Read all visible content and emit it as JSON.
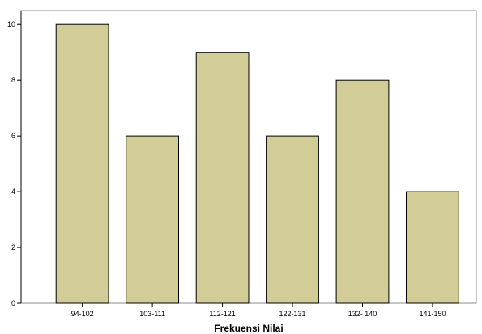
{
  "chart_data": {
    "type": "bar",
    "categories": [
      "94-102",
      "103-111",
      "112-121",
      "122-131",
      "132- 140",
      "141-150"
    ],
    "values": [
      10,
      6,
      9,
      6,
      8,
      4
    ],
    "title": "",
    "xlabel": "Frekuensi Nilai",
    "ylabel": "",
    "ylim": [
      0,
      10.5
    ],
    "yticks": [
      0,
      2,
      4,
      6,
      8,
      10
    ],
    "grid": false,
    "colors": {
      "bar_fill": "#d2cc96",
      "bar_stroke": "#000000",
      "plot_border": "#8c8c8c",
      "background": "#ffffff"
    }
  }
}
